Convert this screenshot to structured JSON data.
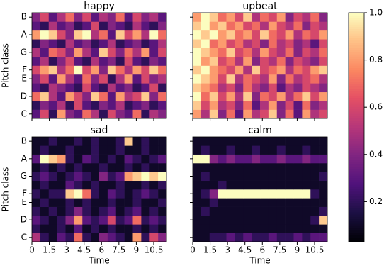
{
  "chart_data": [
    {
      "type": "heatmap",
      "title": "happy",
      "ylabel": "Pitch class",
      "xlim": [
        0,
        11.6
      ],
      "ylim": [
        -0.5,
        11.5
      ],
      "xticks": [
        0,
        1.5,
        3,
        4.5,
        6,
        7.5,
        9,
        10.5
      ],
      "yticks": [
        {
          "value": 0,
          "label": "C"
        },
        {
          "value": 2,
          "label": "D"
        },
        {
          "value": 4,
          "label": "E"
        },
        {
          "value": 5,
          "label": "F"
        },
        {
          "value": 7,
          "label": "G"
        },
        {
          "value": 9,
          "label": "A"
        },
        {
          "value": 11,
          "label": "B"
        }
      ],
      "values": [
        [
          0.3,
          0.6,
          0.2,
          0.8,
          0.4,
          0.3,
          0.7,
          0.5,
          0.2,
          0.6,
          0.4,
          0.3,
          0.7,
          0.2,
          0.5,
          0.4
        ],
        [
          0.2,
          0.4,
          0.3,
          0.5,
          0.2,
          0.6,
          0.3,
          0.2,
          0.4,
          0.3,
          0.5,
          0.2,
          0.3,
          0.4,
          0.2,
          0.3
        ],
        [
          0.7,
          0.9,
          0.5,
          0.3,
          0.8,
          0.6,
          0.4,
          0.9,
          0.7,
          0.3,
          0.8,
          0.5,
          0.6,
          0.9,
          0.4,
          0.7
        ],
        [
          0.3,
          0.2,
          0.5,
          0.4,
          0.3,
          0.2,
          0.6,
          0.3,
          0.2,
          0.5,
          0.3,
          0.4,
          0.2,
          0.3,
          0.6,
          0.2
        ],
        [
          0.4,
          0.6,
          0.3,
          0.8,
          0.5,
          0.3,
          0.7,
          0.4,
          0.6,
          0.2,
          0.5,
          0.8,
          0.3,
          0.6,
          0.4,
          0.5
        ],
        [
          0.6,
          0.8,
          0.9,
          0.5,
          0.7,
          1.0,
          0.6,
          0.8,
          0.4,
          0.9,
          0.7,
          0.5,
          0.8,
          0.6,
          0.9,
          0.7
        ],
        [
          0.3,
          0.5,
          0.2,
          0.4,
          0.6,
          0.3,
          0.2,
          0.5,
          0.3,
          0.4,
          0.2,
          0.6,
          0.3,
          0.2,
          0.4,
          0.3
        ],
        [
          0.5,
          0.3,
          0.7,
          0.6,
          0.4,
          0.8,
          0.5,
          0.3,
          0.9,
          0.6,
          0.4,
          0.7,
          0.5,
          0.8,
          0.3,
          0.6
        ],
        [
          0.2,
          0.4,
          0.3,
          0.2,
          0.5,
          0.3,
          0.4,
          0.2,
          0.3,
          0.5,
          0.2,
          0.3,
          0.4,
          0.2,
          0.3,
          0.5
        ],
        [
          0.8,
          1.0,
          0.9,
          0.6,
          0.4,
          0.9,
          1.0,
          0.5,
          0.7,
          0.3,
          0.9,
          0.6,
          0.8,
          0.5,
          1.0,
          0.7
        ],
        [
          0.3,
          0.2,
          0.5,
          0.3,
          0.4,
          0.2,
          0.3,
          0.6,
          0.2,
          0.4,
          0.3,
          0.2,
          0.5,
          0.3,
          0.2,
          0.4
        ],
        [
          0.4,
          0.6,
          0.3,
          0.5,
          0.7,
          0.4,
          0.6,
          0.3,
          0.5,
          0.4,
          0.7,
          0.3,
          0.6,
          0.4,
          0.5,
          0.3
        ]
      ]
    },
    {
      "type": "heatmap",
      "title": "upbeat",
      "xlim": [
        0,
        11.6
      ],
      "ylim": [
        -0.5,
        11.5
      ],
      "xticks": [
        0,
        1.5,
        3,
        4.5,
        6,
        7.5,
        9,
        10.5
      ],
      "yticks": [
        0,
        2,
        4,
        5,
        7,
        9,
        11
      ],
      "values": [
        [
          0.8,
          0.5,
          0.9,
          0.4,
          0.7,
          0.3,
          0.8,
          0.5,
          0.6,
          0.9,
          0.4,
          0.7,
          0.3,
          0.8,
          0.5,
          0.6
        ],
        [
          0.9,
          0.6,
          0.8,
          0.5,
          0.6,
          0.4,
          0.7,
          0.3,
          0.5,
          0.8,
          0.4,
          0.6,
          0.3,
          0.7,
          0.4,
          0.5
        ],
        [
          1.0,
          0.7,
          0.9,
          0.6,
          0.8,
          0.5,
          0.9,
          0.4,
          0.7,
          0.6,
          0.8,
          0.5,
          0.7,
          0.9,
          0.6,
          0.8
        ],
        [
          0.9,
          0.8,
          0.7,
          0.5,
          0.6,
          0.4,
          0.7,
          0.5,
          0.4,
          0.6,
          0.3,
          0.5,
          0.4,
          0.6,
          0.5,
          0.4
        ],
        [
          1.0,
          0.9,
          0.8,
          0.6,
          0.9,
          0.5,
          0.7,
          0.6,
          0.5,
          0.8,
          0.4,
          0.7,
          0.5,
          0.6,
          0.7,
          0.5
        ],
        [
          0.9,
          1.0,
          0.8,
          0.7,
          0.6,
          0.8,
          0.5,
          0.9,
          0.6,
          0.7,
          0.8,
          0.5,
          0.7,
          0.6,
          0.8,
          0.9
        ],
        [
          1.0,
          0.8,
          0.9,
          0.6,
          0.7,
          0.5,
          0.8,
          0.4,
          0.6,
          0.5,
          0.7,
          0.4,
          0.6,
          0.5,
          0.4,
          0.6
        ],
        [
          1.0,
          0.9,
          0.8,
          0.7,
          0.9,
          0.6,
          0.7,
          0.5,
          0.8,
          0.6,
          0.5,
          0.7,
          0.4,
          0.6,
          0.5,
          0.7
        ],
        [
          0.9,
          1.0,
          0.7,
          0.8,
          0.6,
          0.7,
          0.5,
          0.6,
          0.4,
          0.7,
          0.5,
          0.6,
          0.4,
          0.5,
          0.3,
          0.6
        ],
        [
          1.0,
          0.9,
          1.0,
          0.8,
          0.9,
          0.7,
          0.8,
          0.6,
          0.9,
          0.7,
          0.6,
          0.8,
          0.5,
          0.7,
          0.6,
          0.8
        ],
        [
          0.9,
          1.0,
          0.8,
          0.9,
          0.7,
          0.8,
          0.6,
          0.7,
          0.5,
          0.8,
          0.6,
          0.5,
          0.7,
          0.4,
          0.6,
          0.5
        ],
        [
          0.8,
          1.0,
          0.9,
          0.7,
          0.8,
          0.6,
          0.9,
          0.5,
          0.7,
          0.6,
          0.8,
          0.4,
          0.6,
          0.5,
          0.7,
          0.4
        ]
      ]
    },
    {
      "type": "heatmap",
      "title": "sad",
      "xlabel": "Time",
      "ylabel": "Pitch class",
      "xlim": [
        0,
        11.6
      ],
      "ylim": [
        -0.5,
        11.5
      ],
      "xticks": [
        0,
        1.5,
        3,
        4.5,
        6,
        7.5,
        9,
        10.5
      ],
      "yticks": [
        {
          "value": 0,
          "label": "C"
        },
        {
          "value": 2,
          "label": "D"
        },
        {
          "value": 4,
          "label": "E"
        },
        {
          "value": 5,
          "label": "F"
        },
        {
          "value": 7,
          "label": "G"
        },
        {
          "value": 9,
          "label": "A"
        },
        {
          "value": 11,
          "label": "B"
        }
      ],
      "values": [
        [
          0.5,
          0.2,
          0.1,
          0.3,
          0.2,
          0.7,
          0.2,
          0.1,
          0.4,
          0.3,
          0.2,
          0.1,
          0.8,
          0.2,
          0.6,
          0.4
        ],
        [
          0.2,
          0.1,
          0.1,
          0.2,
          0.1,
          0.3,
          0.1,
          0.2,
          0.1,
          0.2,
          0.1,
          0.1,
          0.2,
          0.1,
          0.2,
          0.1
        ],
        [
          0.3,
          0.2,
          0.1,
          0.2,
          0.4,
          0.8,
          0.3,
          0.2,
          0.3,
          0.6,
          0.2,
          0.3,
          0.7,
          0.2,
          0.3,
          0.2
        ],
        [
          0.2,
          0.1,
          0.2,
          0.1,
          0.2,
          0.4,
          0.2,
          0.1,
          0.2,
          0.3,
          0.1,
          0.2,
          0.3,
          0.1,
          0.2,
          0.1
        ],
        [
          0.1,
          0.2,
          0.1,
          0.1,
          0.2,
          0.1,
          0.2,
          0.1,
          0.1,
          0.2,
          0.1,
          0.1,
          0.2,
          0.1,
          0.1,
          0.2
        ],
        [
          0.2,
          0.1,
          0.2,
          0.2,
          0.9,
          1.0,
          0.7,
          0.2,
          0.1,
          0.3,
          0.2,
          0.1,
          0.2,
          0.3,
          0.2,
          0.1
        ],
        [
          0.1,
          0.2,
          0.1,
          0.1,
          0.3,
          0.2,
          0.1,
          0.2,
          0.1,
          0.1,
          0.2,
          0.1,
          0.1,
          0.2,
          0.1,
          0.2
        ],
        [
          0.2,
          0.3,
          0.2,
          0.1,
          0.2,
          0.3,
          0.2,
          0.1,
          0.4,
          0.2,
          0.3,
          0.8,
          0.9,
          1.0,
          0.9,
          1.0
        ],
        [
          0.1,
          0.2,
          0.1,
          0.2,
          0.1,
          0.2,
          0.1,
          0.1,
          0.2,
          0.1,
          0.1,
          0.2,
          0.1,
          0.2,
          0.1,
          0.1
        ],
        [
          0.3,
          1.0,
          0.9,
          0.8,
          0.2,
          0.1,
          0.3,
          0.2,
          0.1,
          0.2,
          0.1,
          0.3,
          0.2,
          0.1,
          0.2,
          0.3
        ],
        [
          0.1,
          0.2,
          0.1,
          0.1,
          0.2,
          0.1,
          0.1,
          0.2,
          0.1,
          0.1,
          0.2,
          0.1,
          0.1,
          0.2,
          0.1,
          0.1
        ],
        [
          0.1,
          0.1,
          0.2,
          0.1,
          0.1,
          0.2,
          0.1,
          0.2,
          0.1,
          0.1,
          0.2,
          0.9,
          0.1,
          0.2,
          0.1,
          0.1
        ]
      ]
    },
    {
      "type": "heatmap",
      "title": "calm",
      "xlabel": "Time",
      "xlim": [
        0,
        11.6
      ],
      "ylim": [
        -0.5,
        11.5
      ],
      "xticks": [
        0,
        1.5,
        3,
        4.5,
        6,
        7.5,
        9,
        10.5
      ],
      "yticks": [
        0,
        2,
        4,
        5,
        7,
        9,
        11
      ],
      "values": [
        [
          0.1,
          0.1,
          0.2,
          0.2,
          0.3,
          0.2,
          0.3,
          0.2,
          0.2,
          0.3,
          0.2,
          0.2,
          0.3,
          0.2,
          0.3,
          0.3
        ],
        [
          0.1,
          0.1,
          0.1,
          0.1,
          0.1,
          0.1,
          0.1,
          0.1,
          0.1,
          0.1,
          0.1,
          0.1,
          0.1,
          0.1,
          0.1,
          0.1
        ],
        [
          0.1,
          0.1,
          0.1,
          0.1,
          0.1,
          0.1,
          0.1,
          0.1,
          0.1,
          0.1,
          0.1,
          0.1,
          0.1,
          0.1,
          0.2,
          0.9
        ],
        [
          0.1,
          0.2,
          0.1,
          0.1,
          0.1,
          0.1,
          0.1,
          0.1,
          0.1,
          0.1,
          0.1,
          0.1,
          0.1,
          0.1,
          0.1,
          0.2
        ],
        [
          0.1,
          0.1,
          0.2,
          0.1,
          0.1,
          0.1,
          0.1,
          0.1,
          0.1,
          0.1,
          0.1,
          0.1,
          0.1,
          0.1,
          0.1,
          0.1
        ],
        [
          0.1,
          0.2,
          0.4,
          1.0,
          1.0,
          1.0,
          1.0,
          1.0,
          1.0,
          1.0,
          1.0,
          1.0,
          1.0,
          1.0,
          0.2,
          0.1
        ],
        [
          0.1,
          0.1,
          0.1,
          0.2,
          0.1,
          0.1,
          0.1,
          0.1,
          0.1,
          0.1,
          0.1,
          0.1,
          0.1,
          0.1,
          0.1,
          0.1
        ],
        [
          0.1,
          0.2,
          0.1,
          0.1,
          0.1,
          0.1,
          0.1,
          0.1,
          0.1,
          0.1,
          0.1,
          0.1,
          0.1,
          0.1,
          0.1,
          0.2
        ],
        [
          0.1,
          0.1,
          0.1,
          0.1,
          0.1,
          0.1,
          0.1,
          0.1,
          0.1,
          0.1,
          0.1,
          0.1,
          0.1,
          0.1,
          0.1,
          0.1
        ],
        [
          1.0,
          1.0,
          0.4,
          0.3,
          0.4,
          0.3,
          0.3,
          0.4,
          0.3,
          0.3,
          0.4,
          0.3,
          0.3,
          0.4,
          0.3,
          0.3
        ],
        [
          0.1,
          0.2,
          0.1,
          0.1,
          0.2,
          0.1,
          0.1,
          0.2,
          0.1,
          0.1,
          0.2,
          0.1,
          0.1,
          0.2,
          0.1,
          0.1
        ],
        [
          0.1,
          0.1,
          0.1,
          0.1,
          0.1,
          0.1,
          0.1,
          0.1,
          0.1,
          0.1,
          0.1,
          0.1,
          0.1,
          0.1,
          0.1,
          0.1
        ]
      ]
    }
  ],
  "colorbar": {
    "colormap": "magma",
    "lim": [
      0.03,
      1
    ],
    "ticks": [
      0.2,
      0.4,
      0.6,
      0.8,
      {
        "value": 1,
        "label": "1.0"
      }
    ]
  }
}
